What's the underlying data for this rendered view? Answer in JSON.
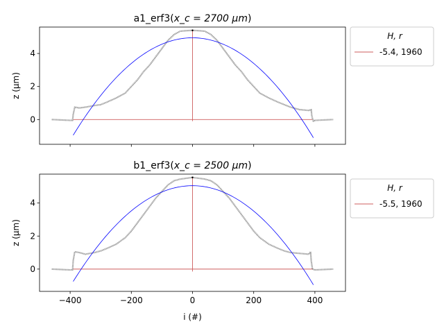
{
  "chart_data": [
    {
      "type": "line",
      "title": "a1_erf3(x_c = 2700 μm)",
      "title_base": "a1_erf3(",
      "title_math": "x_c = 2700 μm",
      "title_close": ")",
      "xlabel": "",
      "ylabel": "z (μm)",
      "xlim": [
        -500,
        500
      ],
      "ylim": [
        -1.5,
        5.6
      ],
      "xticks": [
        -400,
        -200,
        0,
        200,
        400
      ],
      "xtick_labels_visible": false,
      "yticks": [
        0,
        2,
        4
      ],
      "ytick_labels": [
        "0",
        "2",
        "4"
      ],
      "legend": {
        "title": "H, r",
        "placement": "outside-upper-right",
        "entries": [
          "-5.4, 1960"
        ]
      },
      "profile": {
        "color": "#a0a0a0",
        "x": [
          -460,
          -400,
          -392,
          -390,
          -385,
          -370,
          -350,
          -320,
          -300,
          -280,
          -250,
          -220,
          -200,
          -180,
          -160,
          -140,
          -120,
          -100,
          -80,
          -60,
          -40,
          -20,
          0,
          20,
          40,
          60,
          80,
          100,
          120,
          140,
          160,
          180,
          200,
          220,
          250,
          280,
          300,
          320,
          350,
          380,
          388,
          390,
          395,
          400,
          460
        ],
        "y": [
          0.0,
          -0.05,
          -0.05,
          0.3,
          0.75,
          0.7,
          0.75,
          0.85,
          0.9,
          1.05,
          1.3,
          1.6,
          2.0,
          2.4,
          2.9,
          3.3,
          3.8,
          4.3,
          4.8,
          5.15,
          5.35,
          5.38,
          5.4,
          5.38,
          5.35,
          5.15,
          4.8,
          4.3,
          3.8,
          3.3,
          2.9,
          2.4,
          2.0,
          1.6,
          1.3,
          1.05,
          0.9,
          0.75,
          0.6,
          0.55,
          0.6,
          0.2,
          -0.1,
          -0.05,
          0.0
        ]
      },
      "fit": {
        "color": "#0000ff",
        "x_range": [
          -390,
          395
        ],
        "vertex": [
          0,
          4.95
        ],
        "y_at_ends": [
          -0.95,
          -1.1
        ]
      },
      "baseline": {
        "color": "#cd5c5c",
        "x_range": [
          -390,
          395
        ],
        "y": 0.0
      },
      "vertical": {
        "color": "#cd5c5c",
        "x": 0,
        "y_range": [
          -0.1,
          5.4
        ]
      },
      "peak": {
        "color": "#000000",
        "x": 0,
        "y": 5.4
      }
    },
    {
      "type": "line",
      "title": "b1_erf3(x_c = 2500 μm)",
      "title_base": "b1_erf3(",
      "title_math": "x_c = 2500 μm",
      "title_close": ")",
      "xlabel": "i (#)",
      "ylabel": "z (μm)",
      "xlim": [
        -500,
        500
      ],
      "ylim": [
        -1.35,
        5.75
      ],
      "xticks": [
        -400,
        -200,
        0,
        200,
        400
      ],
      "xtick_labels": [
        "−400",
        "−200",
        "0",
        "200",
        "400"
      ],
      "yticks": [
        0,
        2,
        4
      ],
      "ytick_labels": [
        "0",
        "2",
        "4"
      ],
      "legend": {
        "title": "H, r",
        "placement": "outside-upper-right",
        "entries": [
          "-5.5, 1960"
        ]
      },
      "profile": {
        "color": "#a0a0a0",
        "x": [
          -460,
          -400,
          -392,
          -390,
          -385,
          -370,
          -350,
          -320,
          -300,
          -280,
          -250,
          -220,
          -200,
          -180,
          -160,
          -140,
          -120,
          -100,
          -80,
          -60,
          -40,
          -20,
          0,
          20,
          40,
          60,
          80,
          100,
          120,
          140,
          160,
          180,
          200,
          220,
          250,
          280,
          300,
          320,
          350,
          380,
          386,
          388,
          392,
          400,
          460
        ],
        "y": [
          0.0,
          -0.05,
          -0.05,
          0.5,
          1.05,
          1.0,
          0.9,
          1.0,
          1.1,
          1.25,
          1.5,
          1.9,
          2.3,
          2.8,
          3.3,
          3.8,
          4.3,
          4.7,
          5.1,
          5.35,
          5.45,
          5.5,
          5.55,
          5.5,
          5.45,
          5.35,
          5.1,
          4.7,
          4.3,
          3.8,
          3.3,
          2.8,
          2.3,
          1.9,
          1.5,
          1.25,
          1.1,
          1.0,
          0.95,
          0.9,
          1.05,
          0.5,
          0.0,
          -0.05,
          0.0
        ]
      },
      "fit": {
        "color": "#0000ff",
        "x_range": [
          -390,
          395
        ],
        "vertex": [
          0,
          5.05
        ],
        "y_at_ends": [
          -0.75,
          -0.95
        ]
      },
      "baseline": {
        "color": "#cd5c5c",
        "x_range": [
          -390,
          395
        ],
        "y": 0.0
      },
      "vertical": {
        "color": "#cd5c5c",
        "x": 0,
        "y_range": [
          -0.15,
          5.55
        ]
      },
      "peak": {
        "color": "#000000",
        "x": 0,
        "y": 5.55
      }
    }
  ]
}
